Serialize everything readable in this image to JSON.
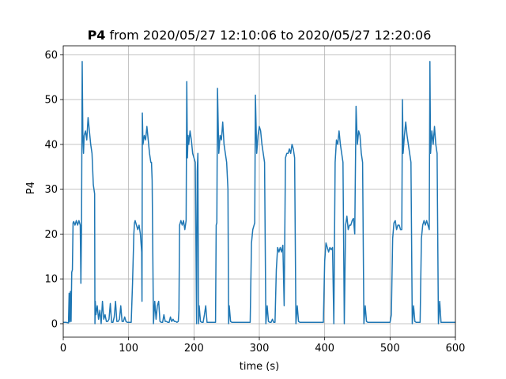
{
  "chart_data": {
    "type": "line",
    "title_bold": "P4",
    "title_rest": " from 2020/05/27 12:10:06 to 2020/05/27 12:20:06",
    "xlabel": "time (s)",
    "ylabel": "P4",
    "xlim": [
      0,
      600
    ],
    "ylim": [
      -3,
      62
    ],
    "xticks": [
      0,
      100,
      200,
      300,
      400,
      500,
      600
    ],
    "yticks": [
      0,
      10,
      20,
      30,
      40,
      50,
      60
    ],
    "grid": true,
    "line_color": "#1f77b4",
    "series": [
      {
        "x": [
          0,
          4,
          8,
          9,
          10,
          11,
          12,
          13,
          14,
          15,
          16,
          18,
          20,
          22,
          24,
          26,
          27,
          28,
          29,
          30,
          31,
          32,
          34,
          36,
          38,
          40,
          42,
          44,
          46,
          48,
          48.5,
          49,
          50,
          52,
          54,
          56,
          58,
          60,
          62,
          64,
          66,
          68,
          70,
          72,
          74,
          76,
          78,
          80,
          82,
          84,
          86,
          88,
          90,
          92,
          94,
          96,
          98,
          100,
          102,
          104,
          106,
          108,
          109,
          110,
          112,
          114,
          116,
          118,
          120,
          120.5,
          121,
          122,
          124,
          126,
          128,
          130,
          132,
          134,
          135,
          136,
          138,
          140,
          142,
          144,
          146,
          148,
          150,
          152,
          154,
          156,
          158,
          160,
          162,
          164,
          166,
          168,
          170,
          172,
          174,
          176,
          177,
          178,
          180,
          182,
          184,
          186,
          188,
          189,
          190,
          191,
          192,
          194,
          196,
          198,
          200,
          202,
          204,
          205,
          206,
          207,
          208,
          210,
          212,
          214,
          216,
          218,
          220,
          222,
          224,
          226,
          228,
          230,
          232,
          233,
          234,
          235,
          236,
          238,
          240,
          242,
          244,
          246,
          248,
          250,
          252,
          253,
          254,
          256,
          258,
          260,
          262,
          264,
          266,
          268,
          270,
          272,
          274,
          276,
          278,
          280,
          282,
          284,
          286,
          288,
          290,
          292,
          293,
          294,
          296,
          298,
          300,
          302,
          304,
          306,
          308,
          310,
          312,
          314,
          316,
          318,
          320,
          322,
          324,
          326,
          328,
          330,
          332,
          334,
          336,
          338,
          340,
          342,
          344,
          346,
          348,
          350,
          352,
          354,
          356,
          358,
          360,
          362,
          364,
          366,
          368,
          370,
          372,
          374,
          376,
          378,
          380,
          382,
          384,
          386,
          388,
          390,
          392,
          394,
          396,
          398,
          400,
          402,
          404,
          406,
          408,
          410,
          412,
          414,
          416,
          418,
          420,
          422,
          424,
          426,
          428,
          430,
          432,
          434,
          436,
          438,
          440,
          442,
          444,
          446,
          448,
          450,
          452,
          454,
          455,
          456,
          458,
          460,
          462,
          464,
          466,
          468,
          470,
          472,
          474,
          476,
          478,
          480,
          482,
          484,
          486,
          488,
          490,
          492,
          494,
          496,
          498,
          500,
          502,
          504,
          506,
          508,
          510,
          512,
          514,
          516,
          518,
          519,
          520,
          522,
          524,
          526,
          528,
          530,
          532,
          534,
          536,
          538,
          540,
          542,
          544,
          546,
          548,
          550,
          552,
          554,
          556,
          558,
          560,
          561,
          562,
          564,
          566,
          568,
          570,
          572,
          574,
          576,
          578,
          580,
          585,
          590,
          595,
          600
        ],
        "y": [
          0.3,
          0.3,
          0.2,
          6.8,
          0.4,
          7.2,
          0.5,
          11.5,
          12,
          22.5,
          22.8,
          22,
          23,
          22,
          23,
          22,
          9,
          22.4,
          58.5,
          42,
          38,
          42,
          43,
          41,
          46,
          43,
          40,
          38,
          31,
          29,
          0,
          5,
          2,
          4,
          1,
          3,
          0,
          5,
          1,
          2,
          0.5,
          0.5,
          1,
          4.5,
          0.3,
          0.3,
          1.5,
          5,
          0.5,
          0.5,
          1,
          4,
          0.5,
          0.5,
          1.5,
          0.5,
          0.3,
          0.3,
          0.3,
          0.3,
          9,
          20,
          22.5,
          23,
          22,
          21,
          22,
          20,
          16,
          5,
          47,
          40,
          42,
          41,
          44,
          41,
          38,
          36,
          36,
          32,
          0,
          5,
          1,
          4,
          5,
          0.5,
          0.3,
          0.3,
          2,
          0.5,
          0.5,
          0.3,
          0.3,
          1.5,
          0.5,
          1,
          0.5,
          0.5,
          0.3,
          0.5,
          3,
          22,
          23,
          22,
          23,
          21,
          23,
          54,
          37,
          42,
          40,
          43,
          41,
          38,
          37,
          36,
          0,
          34,
          38,
          0,
          4,
          0.5,
          0.3,
          0.3,
          2,
          4,
          0.3,
          0.3,
          0.3,
          0.3,
          0.3,
          0.3,
          0.3,
          0.3,
          22,
          22.5,
          52.5,
          38,
          42,
          41,
          45,
          40,
          38,
          36,
          30,
          0,
          4,
          0.5,
          0.3,
          0.3,
          0.3,
          0.3,
          0.3,
          0.3,
          0.3,
          0.3,
          0.3,
          0.3,
          0.3,
          0.3,
          0.3,
          0.3,
          0.3,
          18,
          21,
          22,
          22.5,
          51,
          38,
          42,
          44,
          43,
          40,
          38,
          36,
          0,
          4,
          0.5,
          0.3,
          0.3,
          1,
          0.3,
          0.3,
          12,
          17,
          16,
          17,
          16,
          17.5,
          4,
          37,
          38,
          38,
          39,
          38,
          40,
          39,
          37,
          0,
          4,
          0.5,
          0.3,
          0.3,
          0.3,
          0.3,
          0.3,
          0.3,
          0.3,
          0.3,
          0.3,
          0.3,
          0.3,
          0.3,
          0.3,
          0.3,
          0.3,
          0.3,
          0.3,
          0.3,
          0.3,
          14,
          18,
          17,
          16,
          17,
          16.5,
          17,
          0,
          36,
          41,
          40,
          43,
          40,
          38,
          36,
          0,
          22,
          24,
          21,
          22,
          22,
          23,
          23.5,
          20,
          48.5,
          40,
          43,
          42,
          40,
          38,
          36,
          0,
          4,
          0.5,
          0.3,
          0.3,
          0.3,
          0.3,
          0.3,
          0.3,
          0.3,
          0.3,
          0.3,
          0.3,
          0.3,
          0.3,
          0.3,
          0.3,
          0.3,
          0.3,
          0.3,
          0.3,
          2,
          19,
          22.5,
          23,
          21,
          22,
          22,
          21,
          21,
          50,
          38,
          42,
          45,
          42,
          40,
          38,
          36,
          0,
          4,
          0.5,
          0.3,
          0.3,
          0.3,
          0.3,
          19,
          22,
          23,
          22,
          23,
          22,
          21,
          58.5,
          38,
          43,
          40,
          44,
          40,
          38,
          0,
          5,
          0.3,
          0.3,
          0.3,
          0.3,
          0.3,
          0.3
        ]
      }
    ]
  }
}
